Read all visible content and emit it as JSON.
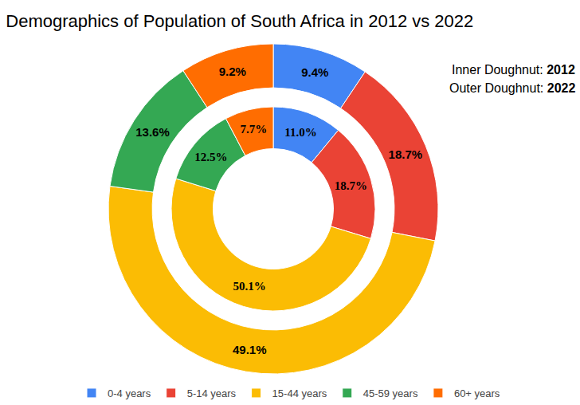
{
  "chart_data": {
    "type": "doughnut",
    "title": "Demographics of Population of South Africa in 2012 vs 2022",
    "categories": [
      "0-4 years",
      "5-14 years",
      "15-44 years",
      "45-59 years",
      "60+ years"
    ],
    "colors": [
      "#4285f4",
      "#ea4335",
      "#fbbc04",
      "#34a853",
      "#ff6d01"
    ],
    "series": [
      {
        "name": "2012",
        "values": [
          11.0,
          18.7,
          50.1,
          12.5,
          7.7
        ],
        "value_labels": [
          "11.0%",
          "18.7%",
          "50.1%",
          "12.5%",
          "7.7%"
        ]
      },
      {
        "name": "2022",
        "values": [
          9.4,
          18.7,
          49.1,
          13.6,
          9.2
        ],
        "value_labels": [
          "9.4%",
          "18.7%",
          "49.1%",
          "13.6%",
          "9.2%"
        ]
      }
    ],
    "annotations": [
      "Inner Doughnut: 2012",
      "Outer Doughnut: 2022"
    ],
    "data_labels": true,
    "legend": "bottom"
  }
}
